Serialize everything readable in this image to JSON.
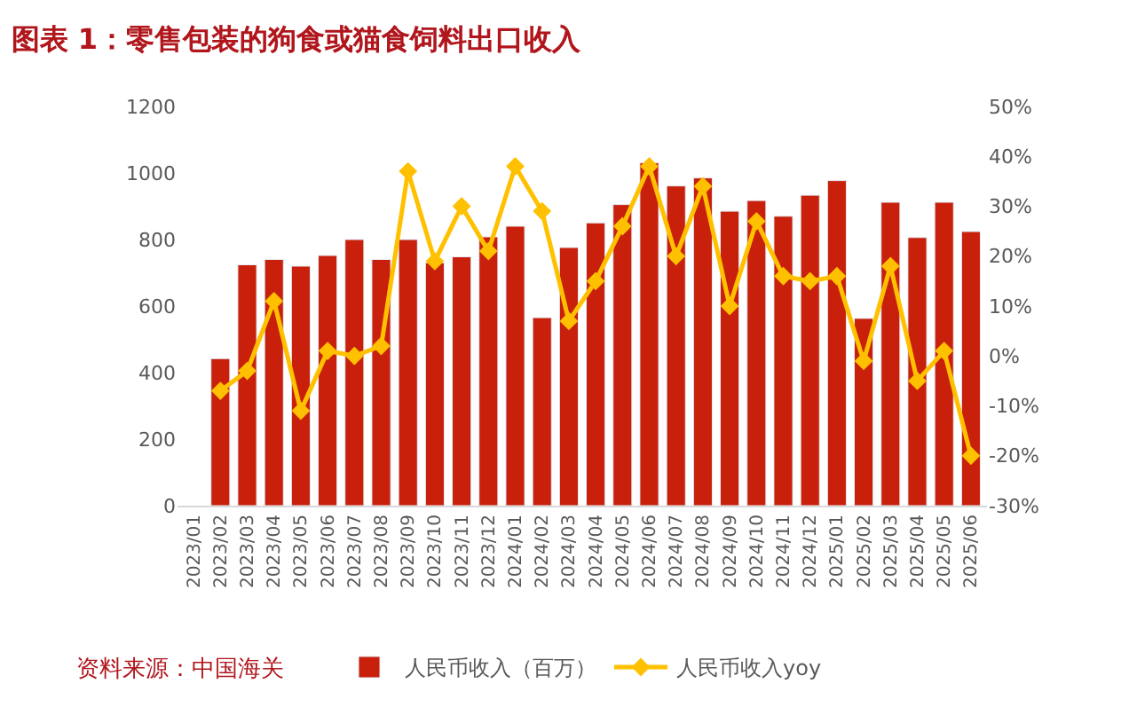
{
  "chart_data": {
    "type": "bar",
    "title": "图表 1：零售包装的狗食或猫食饲料出口收入",
    "categories": [
      "2023/01",
      "2023/02",
      "2023/03",
      "2023/04",
      "2023/05",
      "2023/06",
      "2023/07",
      "2023/08",
      "2023/09",
      "2023/10",
      "2023/11",
      "2023/12",
      "2024/01",
      "2024/02",
      "2024/03",
      "2024/04",
      "2024/05",
      "2024/06",
      "2024/07",
      "2024/08",
      "2024/09",
      "2024/10",
      "2024/11",
      "2024/12",
      "2025/01",
      "2025/02",
      "2025/03",
      "2025/04",
      "2025/05",
      "2025/06"
    ],
    "series": [
      {
        "name": "人民币收入（百万）",
        "color": "#c8200a",
        "values": [
          null,
          442,
          724,
          740,
          720,
          752,
          800,
          740,
          800,
          730,
          748,
          808,
          840,
          565,
          776,
          850,
          905,
          1031,
          961,
          985,
          885,
          917,
          870,
          933,
          977,
          563,
          912,
          806,
          912,
          824
        ]
      },
      {
        "name": "人民币收入yoy",
        "type": "line",
        "axis": "y2",
        "color": "#ffc000",
        "marker": "diamond",
        "values": [
          null,
          -7,
          -3,
          11,
          -11,
          1,
          0,
          2,
          37,
          19,
          30,
          21,
          38,
          29,
          7,
          15,
          26,
          38,
          20,
          34,
          10,
          27,
          16,
          15,
          16,
          -1,
          18,
          -5,
          1,
          -20
        ]
      }
    ],
    "ylim": [
      0,
      1200
    ],
    "yticks": [
      0,
      200,
      400,
      600,
      800,
      1000,
      1200
    ],
    "y2lim": [
      -30,
      50
    ],
    "y2ticks": [
      {
        "value": -30,
        "label": "-30%"
      },
      {
        "value": -20,
        "label": "-20%"
      },
      {
        "value": -10,
        "label": "-10%"
      },
      {
        "value": 0,
        "label": "0%"
      },
      {
        "value": 10,
        "label": "10%"
      },
      {
        "value": 20,
        "label": "20%"
      },
      {
        "value": 30,
        "label": "30%"
      },
      {
        "value": 40,
        "label": "40%"
      },
      {
        "value": 50,
        "label": "50%"
      }
    ],
    "legend": "bottom",
    "annotations": [
      "资料来源：中国海关"
    ]
  }
}
